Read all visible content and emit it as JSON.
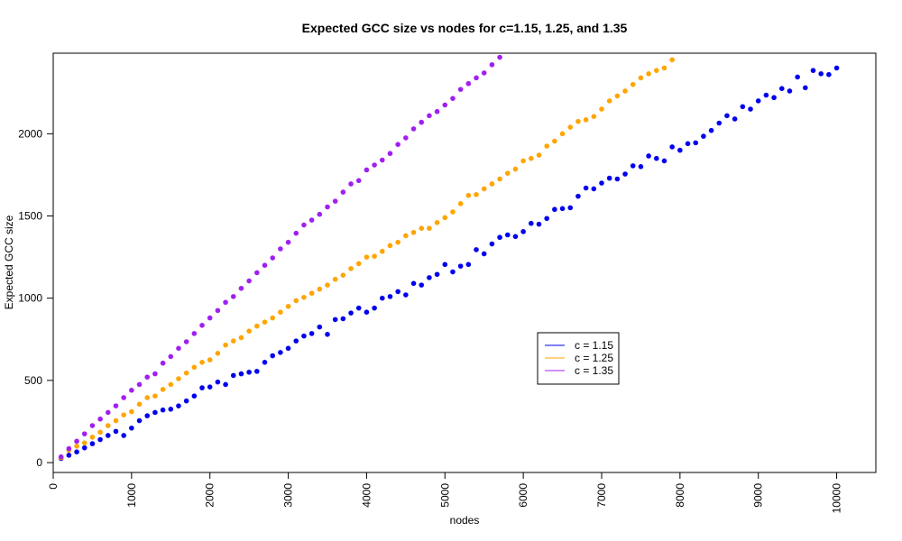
{
  "chart_data": {
    "type": "scatter",
    "title": "Expected GCC size vs nodes for c=1.15, 1.25, and 1.35",
    "xlabel": "nodes",
    "ylabel": "Expected GCC size",
    "xlim": [
      0,
      10500
    ],
    "ylim": [
      -60,
      2490
    ],
    "x_ticks": [
      "0",
      "1000",
      "2000",
      "3000",
      "4000",
      "5000",
      "6000",
      "7000",
      "8000",
      "9000",
      "10000"
    ],
    "y_ticks": [
      "0",
      "500",
      "1000",
      "1500",
      "2000"
    ],
    "x": [
      100,
      200,
      300,
      400,
      500,
      600,
      700,
      800,
      900,
      1000,
      1100,
      1200,
      1300,
      1400,
      1500,
      1600,
      1700,
      1800,
      1900,
      2000,
      2100,
      2200,
      2300,
      2400,
      2500,
      2600,
      2700,
      2800,
      2900,
      3000,
      3100,
      3200,
      3300,
      3400,
      3500,
      3600,
      3700,
      3800,
      3900,
      4000,
      4100,
      4200,
      4300,
      4400,
      4500,
      4600,
      4700,
      4800,
      4900,
      5000,
      5100,
      5200,
      5300,
      5400,
      5500,
      5600,
      5700,
      5800,
      5900,
      6000,
      6100,
      6200,
      6300,
      6400,
      6500,
      6600,
      6700,
      6800,
      6900,
      7000,
      7100,
      7200,
      7300,
      7400,
      7500,
      7600,
      7700,
      7800,
      7900,
      8000,
      8100,
      8200,
      8300,
      8400,
      8500,
      8600,
      8700,
      8800,
      8900,
      9000,
      9100,
      9200,
      9300,
      9400,
      9500,
      9600,
      9700,
      9800,
      9900,
      10000
    ],
    "legend_position": "center-right",
    "grid": false,
    "series": [
      {
        "name": "c = 1.15",
        "color": "#0000ee",
        "values": [
          25,
          45,
          65,
          90,
          115,
          140,
          165,
          190,
          165,
          210,
          255,
          285,
          305,
          320,
          325,
          345,
          375,
          405,
          455,
          460,
          490,
          475,
          530,
          540,
          550,
          555,
          610,
          650,
          670,
          695,
          740,
          770,
          785,
          825,
          780,
          870,
          875,
          910,
          940,
          915,
          940,
          1000,
          1010,
          1040,
          1020,
          1090,
          1080,
          1125,
          1145,
          1205,
          1160,
          1195,
          1205,
          1295,
          1270,
          1330,
          1370,
          1385,
          1375,
          1405,
          1455,
          1450,
          1485,
          1540,
          1545,
          1550,
          1620,
          1670,
          1665,
          1700,
          1730,
          1725,
          1755,
          1805,
          1800,
          1865,
          1850,
          1835,
          1920,
          1900,
          1940,
          1945,
          1985,
          2020,
          2065,
          2110,
          2090,
          2165,
          2150,
          2200,
          2235,
          2220,
          2275,
          2260,
          2345,
          2280,
          2385,
          2365,
          2360,
          2400
        ]
      },
      {
        "name": "c = 1.25",
        "color": "#ffa500",
        "values": [
          30,
          75,
          100,
          120,
          155,
          185,
          225,
          255,
          290,
          310,
          355,
          395,
          405,
          445,
          475,
          510,
          545,
          580,
          610,
          625,
          665,
          715,
          740,
          760,
          800,
          830,
          855,
          880,
          915,
          950,
          985,
          1005,
          1030,
          1055,
          1080,
          1115,
          1140,
          1180,
          1210,
          1250,
          1255,
          1285,
          1320,
          1340,
          1380,
          1400,
          1425,
          1425,
          1460,
          1490,
          1525,
          1575,
          1625,
          1630,
          1665,
          1695,
          1725,
          1760,
          1785,
          1835,
          1850,
          1870,
          1925,
          1955,
          2000,
          2040,
          2075,
          2085,
          2105,
          2150,
          2200,
          2230,
          2260,
          2300,
          2340,
          2365,
          2385,
          2400,
          2450
        ]
      },
      {
        "name": "c = 1.35",
        "color": "#a020f0",
        "values": [
          35,
          85,
          130,
          175,
          225,
          265,
          305,
          345,
          395,
          440,
          475,
          520,
          540,
          605,
          645,
          695,
          735,
          785,
          835,
          880,
          925,
          975,
          1010,
          1060,
          1105,
          1155,
          1200,
          1245,
          1300,
          1340,
          1395,
          1445,
          1475,
          1510,
          1555,
          1590,
          1645,
          1695,
          1715,
          1780,
          1810,
          1840,
          1880,
          1935,
          1975,
          2030,
          2070,
          2110,
          2135,
          2175,
          2215,
          2270,
          2305,
          2340,
          2370,
          2420,
          2465
        ]
      }
    ]
  }
}
